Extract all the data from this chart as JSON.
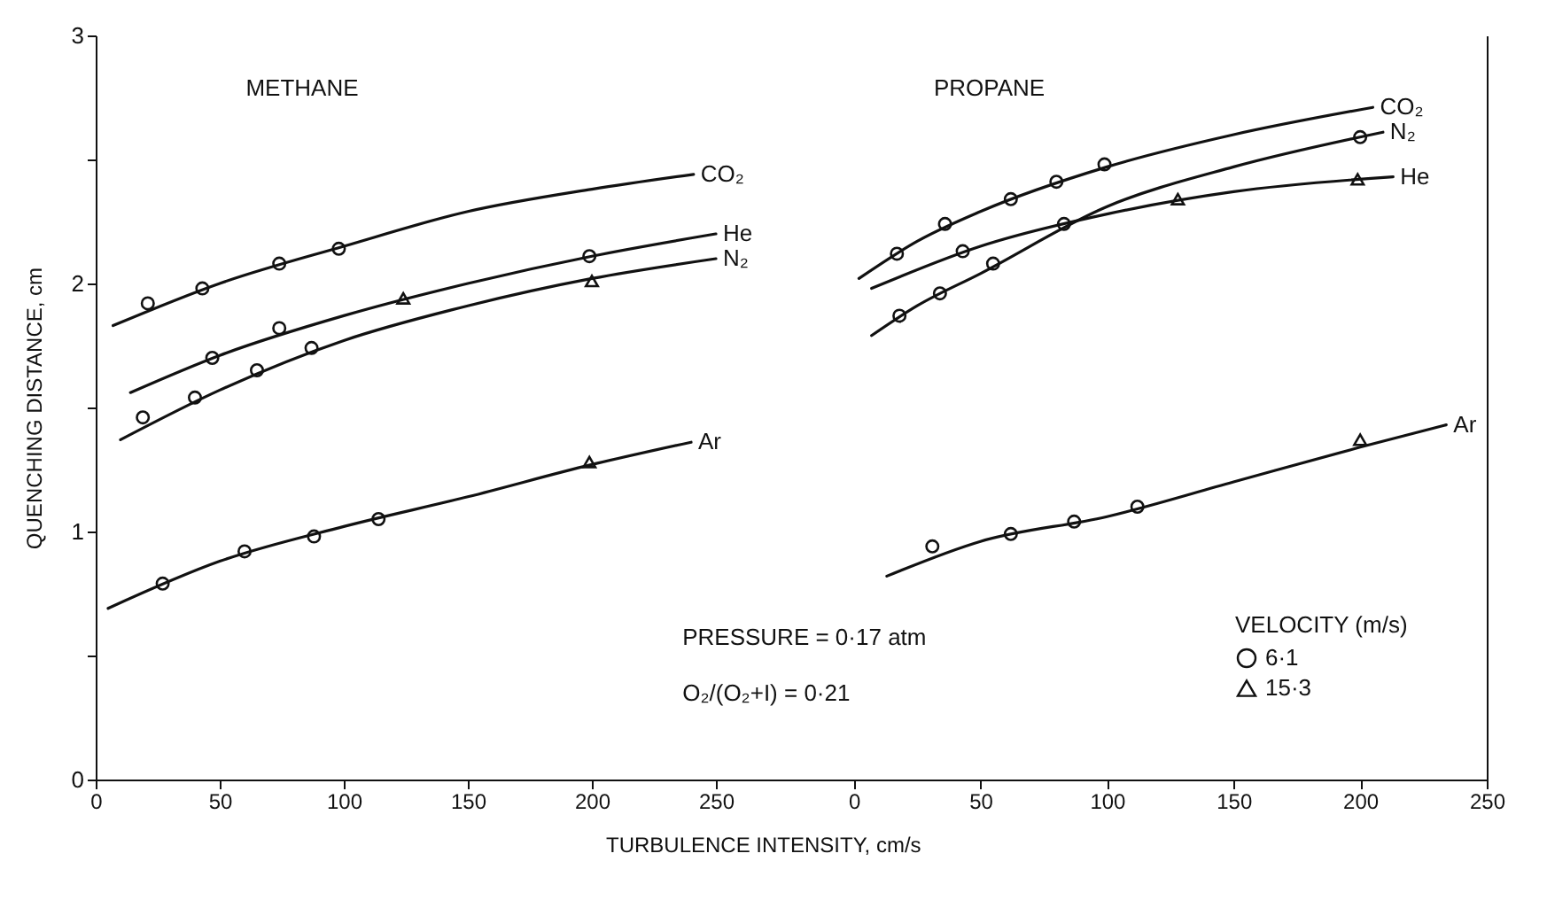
{
  "chart_data": [
    {
      "type": "line",
      "title": "METHANE",
      "xlabel": "TURBULENCE INTENSITY, cm/s",
      "ylabel": "QUENCHING DISTANCE, cm",
      "xlim": [
        0,
        275
      ],
      "xticks": [
        0,
        50,
        100,
        150,
        200,
        250
      ],
      "ylim": [
        0,
        3
      ],
      "yticks": [
        0,
        {
          "value": 0.5,
          "label": null
        },
        1,
        {
          "value": 1.5,
          "label": null
        },
        2,
        {
          "value": 2.5,
          "label": null
        },
        3
      ],
      "annotations": [
        "PRESSURE = 0·17 atm",
        "O₂/(O₂+I) = 0·21"
      ],
      "series": [
        {
          "name": "CO₂",
          "color": "#111111",
          "x": [
            7,
            50,
            100,
            150,
            200,
            241
          ],
          "values": [
            1.83,
            2.0,
            2.15,
            2.29,
            2.38,
            2.44
          ]
        },
        {
          "name": "He",
          "color": "#111111",
          "x": [
            14,
            50,
            100,
            150,
            200,
            250
          ],
          "values": [
            1.56,
            1.71,
            1.87,
            2.0,
            2.11,
            2.2
          ]
        },
        {
          "name": "N₂",
          "color": "#111111",
          "x": [
            10,
            50,
            100,
            150,
            200,
            250
          ],
          "values": [
            1.37,
            1.57,
            1.77,
            1.91,
            2.02,
            2.1
          ]
        },
        {
          "name": "Ar",
          "color": "#111111",
          "x": [
            5,
            50,
            100,
            150,
            200,
            240
          ],
          "values": [
            0.69,
            0.88,
            1.02,
            1.14,
            1.27,
            1.36
          ]
        },
        {
          "type": "scatter",
          "marker": "circle",
          "color": "#111111",
          "x": [
            21,
            43,
            74,
            98,
            47,
            74,
            199,
            19,
            40,
            65,
            87,
            27,
            60,
            88,
            114
          ],
          "values": [
            1.92,
            1.98,
            2.08,
            2.14,
            1.7,
            1.82,
            2.11,
            1.46,
            1.54,
            1.65,
            1.74,
            0.79,
            0.92,
            0.98,
            1.05
          ]
        },
        {
          "type": "scatter",
          "marker": "triangle",
          "color": "#111111",
          "x": [
            124,
            200,
            199
          ],
          "values": [
            1.94,
            2.01,
            1.28
          ]
        }
      ]
    },
    {
      "type": "line",
      "title": "PROPANE",
      "legend_title": "VELOCITY (m/s)",
      "legend": "bottom right",
      "tick_labels": "x",
      "xlim": [
        -30,
        250
      ],
      "xticks": [
        0,
        50,
        100,
        150,
        200,
        250
      ],
      "ylim": [
        0,
        3
      ],
      "series": [
        {
          "name": "CO₂",
          "color": "#111111",
          "x": [
            2,
            25,
            50,
            100,
            150,
            205
          ],
          "values": [
            2.02,
            2.17,
            2.29,
            2.47,
            2.6,
            2.71
          ]
        },
        {
          "name": "N₂",
          "color": "#111111",
          "x": [
            7,
            25,
            50,
            100,
            150,
            209
          ],
          "values": [
            1.79,
            1.91,
            2.04,
            2.31,
            2.47,
            2.61
          ]
        },
        {
          "name": "He",
          "color": "#111111",
          "x": [
            7,
            50,
            100,
            150,
            213
          ],
          "values": [
            1.98,
            2.15,
            2.28,
            2.37,
            2.43
          ]
        },
        {
          "name": "Ar",
          "color": "#111111",
          "x": [
            13,
            50,
            100,
            150,
            200,
            234
          ],
          "values": [
            0.82,
            0.96,
            1.06,
            1.2,
            1.34,
            1.43
          ]
        },
        {
          "type": "scatter",
          "name": "6·1",
          "marker": "circle",
          "color": "#111111",
          "x": [
            17,
            36,
            62,
            80,
            99,
            18,
            34,
            55,
            83,
            200,
            43,
            31,
            62,
            87,
            112
          ],
          "values": [
            2.12,
            2.24,
            2.34,
            2.41,
            2.48,
            1.87,
            1.96,
            2.08,
            2.24,
            2.59,
            2.13,
            0.94,
            0.99,
            1.04,
            1.1
          ]
        },
        {
          "type": "scatter",
          "name": "15·3",
          "marker": "triangle",
          "color": "#111111",
          "x": [
            128,
            199,
            200
          ],
          "values": [
            2.34,
            2.42,
            1.37
          ]
        }
      ]
    }
  ]
}
